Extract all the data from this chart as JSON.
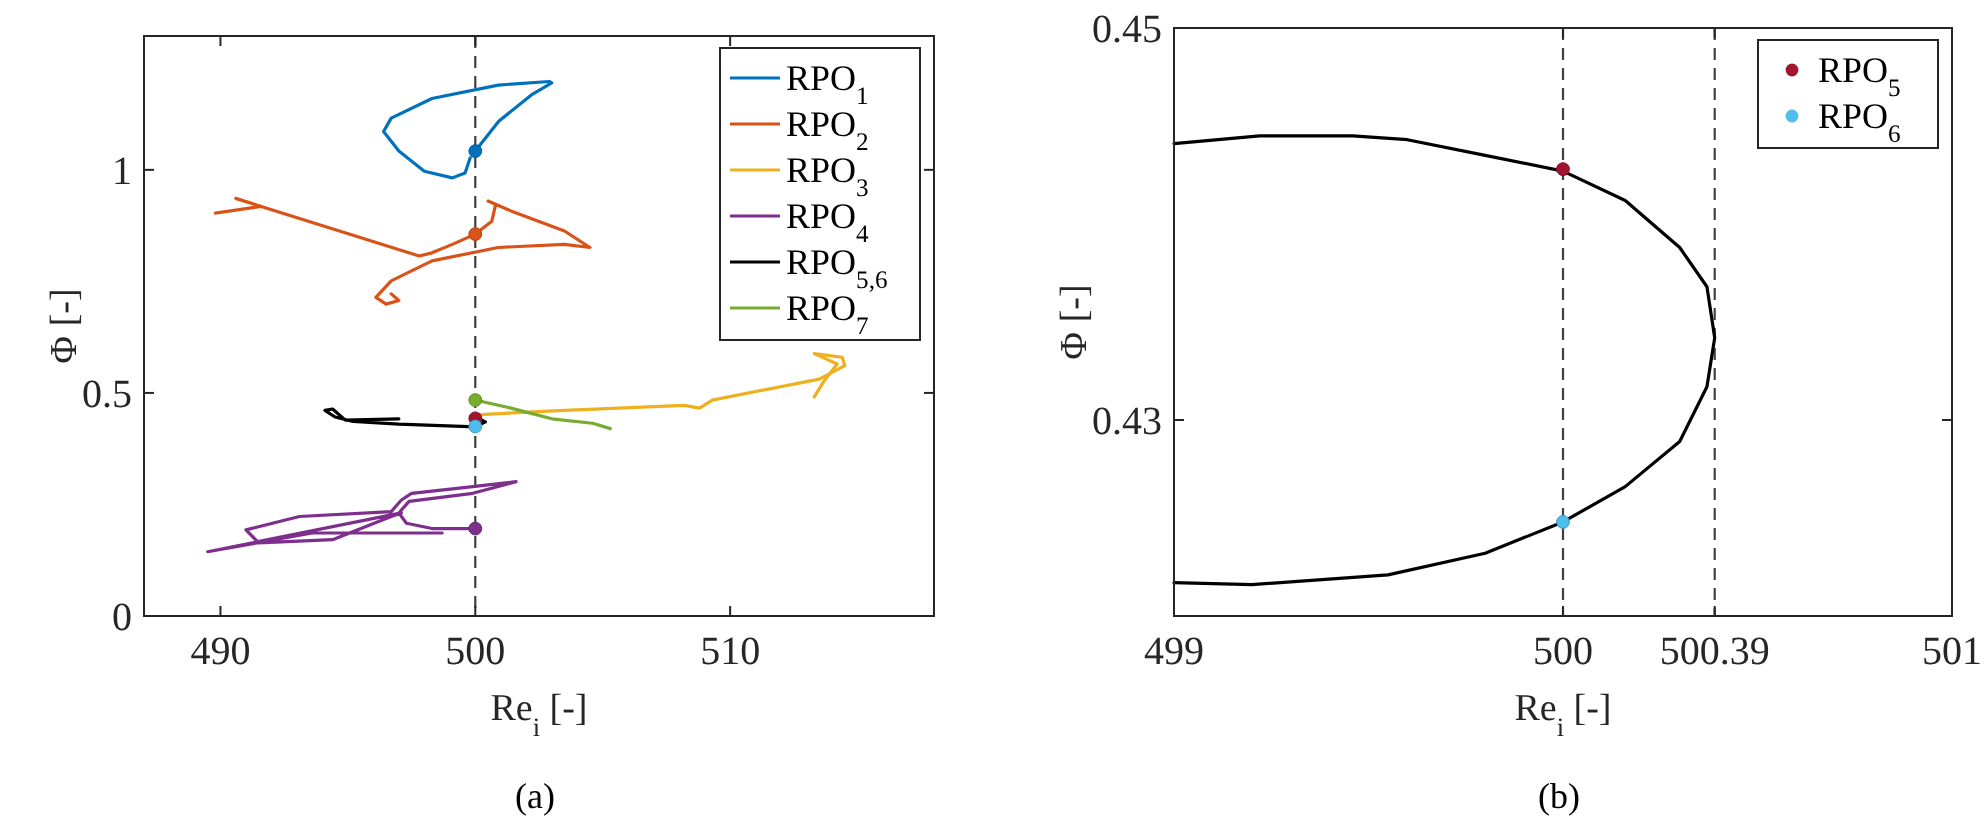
{
  "chart_data": [
    {
      "type": "line",
      "title": "(a)",
      "xlabel": "Re$_{i}$ [-]",
      "ylabel": "Φ [-]",
      "xlim": [
        487,
        518
      ],
      "ylim": [
        0,
        1.3
      ],
      "xticks": [
        490,
        500,
        510
      ],
      "yticks": [
        0,
        0.5,
        1
      ],
      "legend": "top right",
      "ref_lines": [
        {
          "axis": "x",
          "value": 500,
          "color": "#404040",
          "line_style": "dashed"
        }
      ],
      "series": [
        {
          "name": "RPO$_{1}$",
          "color": "#0072bd",
          "x": [
            500,
            500.92,
            502.2,
            503.0,
            502.9,
            500.9,
            498.3,
            496.7,
            496.4,
            497.0,
            498.0,
            499.1,
            499.6,
            499.8
          ],
          "values": [
            1.042,
            1.109,
            1.168,
            1.195,
            1.198,
            1.19,
            1.16,
            1.116,
            1.086,
            1.042,
            0.997,
            0.982,
            0.993,
            1.027
          ]
        },
        {
          "name": "RPO$_{2}$",
          "color": "#d95319",
          "x": [
            489.8,
            491.6,
            490.6,
            491.6,
            497.8,
            498.3,
            499.1,
            500,
            500.65,
            500.8,
            500.5,
            501.4,
            503.5,
            504.5,
            503.5,
            500.9,
            498.3,
            496.7,
            496.1,
            496.5,
            497.0,
            496.7
          ],
          "values": [
            0.903,
            0.918,
            0.936,
            0.918,
            0.807,
            0.814,
            0.833,
            0.856,
            0.885,
            0.923,
            0.93,
            0.908,
            0.863,
            0.826,
            0.833,
            0.826,
            0.796,
            0.751,
            0.714,
            0.699,
            0.707,
            0.722
          ]
        },
        {
          "name": "RPO$_{3}$",
          "color": "#edb120",
          "x": [
            500,
            503.5,
            508.2,
            508.8,
            509.3,
            513.5,
            514.5,
            514.4,
            513.3,
            514.2,
            513.7,
            513.3
          ],
          "values": [
            0.451,
            0.461,
            0.472,
            0.466,
            0.484,
            0.531,
            0.561,
            0.58,
            0.588,
            0.565,
            0.528,
            0.491
          ]
        },
        {
          "name": "RPO$_{4}$",
          "color": "#7e2f8e",
          "x": [
            500,
            498.3,
            497.3,
            497.0,
            497.4,
            499.9,
            501.6,
            499.9,
            497.5,
            497.1,
            496.7,
            493.1,
            491.0,
            491.5,
            494.4,
            496.7,
            497.1,
            489.5,
            493.6,
            498.7
          ],
          "values": [
            0.196,
            0.196,
            0.208,
            0.231,
            0.257,
            0.275,
            0.301,
            0.29,
            0.275,
            0.26,
            0.234,
            0.223,
            0.193,
            0.164,
            0.171,
            0.223,
            0.231,
            0.144,
            0.186,
            0.186
          ]
        },
        {
          "name": "RPO$_{5,6}$",
          "color": "#000000",
          "x": [
            500,
            500.4,
            500,
            497,
            495.2,
            494.5,
            494.1,
            494.4,
            494.9,
            497
          ],
          "values": [
            0.446,
            0.435,
            0.424,
            0.43,
            0.436,
            0.446,
            0.461,
            0.464,
            0.439,
            0.442
          ]
        },
        {
          "name": "RPO$_{7}$",
          "color": "#77ac30",
          "x": [
            500,
            501.4,
            503.0,
            504.6,
            505.3
          ],
          "values": [
            0.484,
            0.466,
            0.442,
            0.432,
            0.42
          ]
        },
        {
          "type": "scatter",
          "color": "#0072bd",
          "x": [
            500
          ],
          "values": [
            1.042
          ]
        },
        {
          "type": "scatter",
          "color": "#d95319",
          "x": [
            500
          ],
          "values": [
            0.856
          ]
        },
        {
          "type": "scatter",
          "color": "#7e2f8e",
          "x": [
            500
          ],
          "values": [
            0.196
          ]
        },
        {
          "type": "scatter",
          "color": "#77ac30",
          "x": [
            500
          ],
          "values": [
            0.484
          ]
        },
        {
          "type": "scatter",
          "color": "#a2142f",
          "x": [
            500
          ],
          "values": [
            0.443
          ]
        },
        {
          "type": "scatter",
          "color": "#4dbeee",
          "x": [
            500
          ],
          "values": [
            0.425
          ]
        }
      ]
    },
    {
      "type": "line",
      "title": "(b)",
      "xlabel": "Re$_{i}$ [-]",
      "ylabel": "Φ [-]",
      "xlim": [
        499,
        501
      ],
      "ylim": [
        0.42,
        0.45
      ],
      "xticks": [
        499,
        500,
        500.39,
        501
      ],
      "yticks": [
        0.43,
        0.45
      ],
      "legend": "top right",
      "ref_lines": [
        {
          "axis": "x",
          "value": 500,
          "color": "#404040",
          "line_style": "dashed"
        },
        {
          "axis": "x",
          "value": 500.39,
          "color": "#404040",
          "line_style": "dashed"
        }
      ],
      "series": [
        {
          "color": "#000000",
          "x": [
            499,
            499.22,
            499.46,
            499.6,
            499.8,
            500,
            500.16,
            500.3,
            500.37,
            500.39,
            500.37,
            500.3,
            500.16,
            500,
            499.8,
            499.55,
            499.2,
            499
          ],
          "values": [
            0.4441,
            0.4445,
            0.4445,
            0.4443,
            0.4435,
            0.4427,
            0.4412,
            0.4388,
            0.4368,
            0.4342,
            0.4317,
            0.4289,
            0.4266,
            0.4248,
            0.4232,
            0.4221,
            0.4216,
            0.4217
          ]
        },
        {
          "type": "scatter",
          "name": "RPO$_{5}$",
          "color": "#a2142f",
          "x": [
            500
          ],
          "values": [
            0.4428
          ]
        },
        {
          "type": "scatter",
          "name": "RPO$_{6}$",
          "color": "#4dbeee",
          "x": [
            500
          ],
          "values": [
            0.4248
          ]
        }
      ]
    }
  ]
}
